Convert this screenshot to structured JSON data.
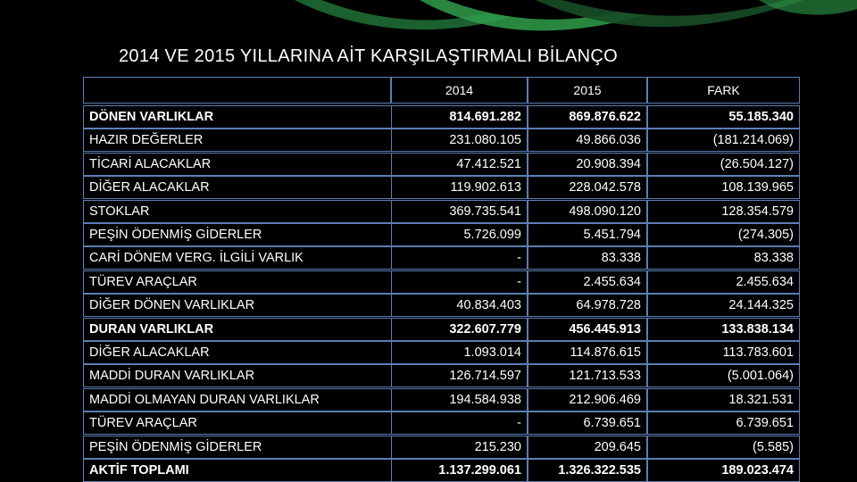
{
  "title": "2014 VE 2015 YILLARINA AİT KARŞILAŞTIRMALI BİLANÇO",
  "header": {
    "label": "",
    "col2014": "2014",
    "col2015": "2015",
    "colFark": "FARK"
  },
  "colors": {
    "border": "#5b7fb5",
    "background": "#000000",
    "text": "#ffffff",
    "accent": "#2f9e4a"
  },
  "rows": [
    {
      "label": "DÖNEN VARLIKLAR",
      "v2014": "814.691.282",
      "v2015": "869.876.622",
      "fark": "55.185.340"
    },
    {
      "label": "HAZIR DEĞERLER",
      "v2014": "231.080.105",
      "v2015": "49.866.036",
      "fark": "(181.214.069)"
    },
    {
      "label": "TİCARİ ALACAKLAR",
      "v2014": "47.412.521",
      "v2015": "20.908.394",
      "fark": "(26.504.127)"
    },
    {
      "label": "DİĞER ALACAKLAR",
      "v2014": "119.902.613",
      "v2015": "228.042.578",
      "fark": "108.139.965"
    },
    {
      "label": "STOKLAR",
      "v2014": "369.735.541",
      "v2015": "498.090.120",
      "fark": "128.354.579"
    },
    {
      "label": "PEŞİN ÖDENMİŞ GİDERLER",
      "v2014": "5.726.099",
      "v2015": "5.451.794",
      "fark": "(274.305)"
    },
    {
      "label": "CARİ DÖNEM VERG. İLGİLİ VARLIK",
      "v2014": "-",
      "v2015": "83.338",
      "fark": "83.338"
    },
    {
      "label": "TÜREV ARAÇLAR",
      "v2014": "-",
      "v2015": "2.455.634",
      "fark": "2.455.634"
    },
    {
      "label": "DİĞER DÖNEN VARLIKLAR",
      "v2014": "40.834.403",
      "v2015": "64.978.728",
      "fark": "24.144.325"
    },
    {
      "label": "DURAN VARLIKLAR",
      "v2014": "322.607.779",
      "v2015": "456.445.913",
      "fark": "133.838.134"
    },
    {
      "label": "DİĞER ALACAKLAR",
      "v2014": "1.093.014",
      "v2015": "114.876.615",
      "fark": "113.783.601"
    },
    {
      "label": "MADDİ DURAN VARLIKLAR",
      "v2014": "126.714.597",
      "v2015": "121.713.533",
      "fark": "(5.001.064)"
    },
    {
      "label": "MADDİ OLMAYAN DURAN VARLIKLAR",
      "v2014": "194.584.938",
      "v2015": "212.906.469",
      "fark": "18.321.531"
    },
    {
      "label": "TÜREV ARAÇLAR",
      "v2014": "-",
      "v2015": "6.739.651",
      "fark": "6.739.651"
    },
    {
      "label": "PEŞİN ÖDENMİŞ GİDERLER",
      "v2014": "215.230",
      "v2015": "209.645",
      "fark": "(5.585)"
    },
    {
      "label": "AKTİF TOPLAMI",
      "v2014": "1.137.299.061",
      "v2015": "1.326.322.535",
      "fark": "189.023.474"
    }
  ]
}
